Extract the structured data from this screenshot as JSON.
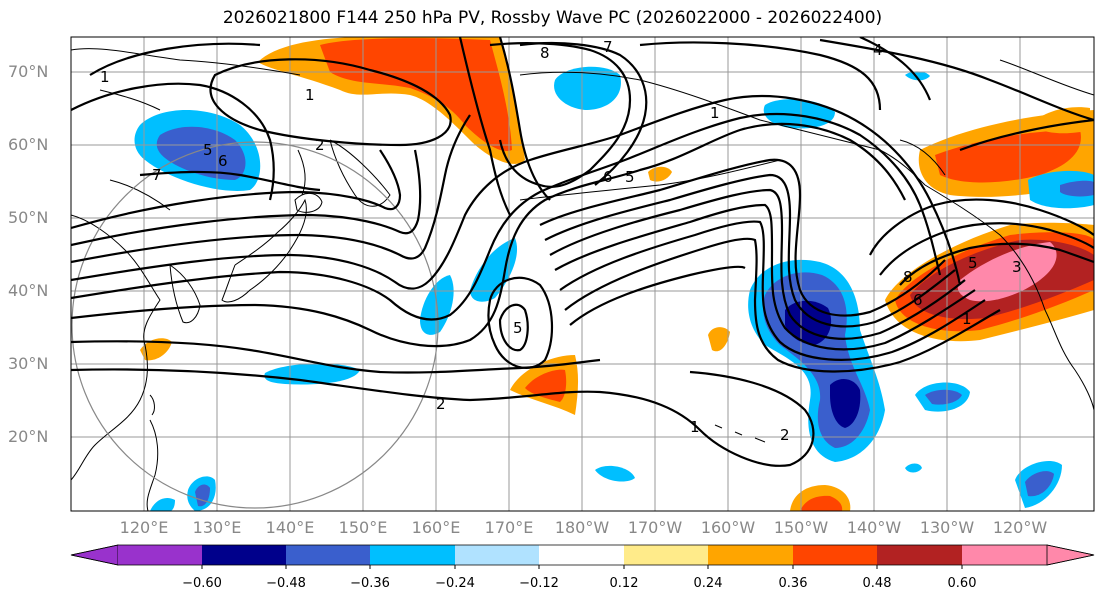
{
  "title": "2026021800 F144 250 hPa PV, Rossby Wave PC (2026022000 - 2026022400)",
  "lat_labels": [
    "70°N",
    "60°N",
    "50°N",
    "40°N",
    "30°N",
    "20°N"
  ],
  "lon_labels": [
    "120°E",
    "130°E",
    "140°E",
    "150°E",
    "160°E",
    "170°E",
    "180°W",
    "170°W",
    "160°W",
    "150°W",
    "140°W",
    "130°W",
    "120°W"
  ],
  "colorbar": {
    "ticks": [
      "−0.60",
      "−0.48",
      "−0.36",
      "−0.24",
      "−0.12",
      "0.12",
      "0.24",
      "0.36",
      "0.48",
      "0.60"
    ],
    "colors": [
      "#9932cc",
      "#00008b",
      "#3a5fcd",
      "#00bfff",
      "#b0e2ff",
      "#ffffff",
      "#ffeb8a",
      "#ffa500",
      "#ff4500",
      "#b22222",
      "#ff88aa"
    ]
  },
  "contour_labels": [
    "1",
    "1",
    "2",
    "5",
    "6",
    "7",
    "8",
    "7",
    "4",
    "6",
    "5",
    "1",
    "5",
    "2",
    "1",
    "2",
    "8",
    "6",
    "1",
    "5",
    "3"
  ],
  "anomaly_palette": {
    "neg_strong": "#00008b",
    "neg_mid": "#3a5fcd",
    "neg_weak": "#00bfff",
    "pos_weak": "#ffa500",
    "pos_mid": "#ff4500",
    "pos_strong": "#b22222",
    "pos_extreme": "#ff88aa"
  }
}
